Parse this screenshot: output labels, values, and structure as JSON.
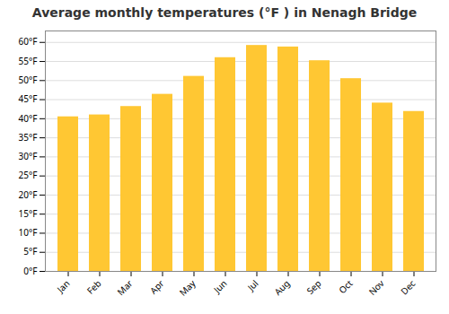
{
  "chart_data": {
    "type": "bar",
    "title": "Average monthly temperatures (°F ) in Nenagh Bridge",
    "categories": [
      "Jan",
      "Feb",
      "Mar",
      "Apr",
      "May",
      "Jun",
      "Jul",
      "Aug",
      "Sep",
      "Oct",
      "Nov",
      "Dec"
    ],
    "values": [
      40.5,
      41.0,
      43.2,
      46.4,
      51.1,
      56.0,
      59.2,
      58.8,
      55.2,
      50.5,
      44.1,
      41.9
    ],
    "color": "#FFC733",
    "ylim": [
      0,
      63
    ],
    "yticks": [
      {
        "value": 0,
        "label": "0°F"
      },
      {
        "value": 5,
        "label": "5°F"
      },
      {
        "value": 10,
        "label": "10°F"
      },
      {
        "value": 15,
        "label": "15°F"
      },
      {
        "value": 20,
        "label": "20°F"
      },
      {
        "value": 25,
        "label": "25°F"
      },
      {
        "value": 30,
        "label": "30°F"
      },
      {
        "value": 35,
        "label": "35°F"
      },
      {
        "value": 40,
        "label": "40°F"
      },
      {
        "value": 45,
        "label": "45°F"
      },
      {
        "value": 50,
        "label": "50°F"
      },
      {
        "value": 55,
        "label": "55°F"
      },
      {
        "value": 60,
        "label": "60°F"
      }
    ],
    "grid": true
  }
}
